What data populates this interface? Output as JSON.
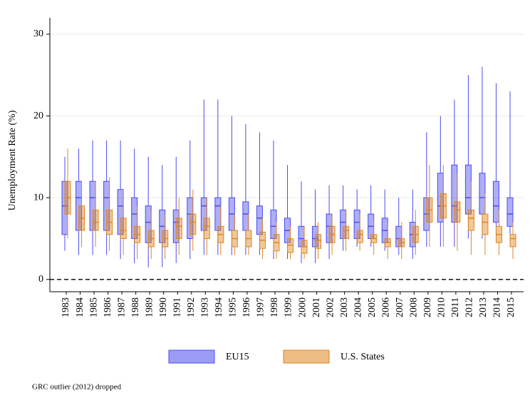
{
  "chart_data": {
    "type": "box",
    "y_label": "Unemployment Rate (%)",
    "note": "GRC outlier (2012) dropped",
    "categories": [
      "1983",
      "1984",
      "1985",
      "1986",
      "1987",
      "1988",
      "1989",
      "1990",
      "1991",
      "1992",
      "1993",
      "1994",
      "1995",
      "1996",
      "1997",
      "1998",
      "1999",
      "2000",
      "2001",
      "2002",
      "2003",
      "2004",
      "2005",
      "2006",
      "2007",
      "2008",
      "2009",
      "2010",
      "2011",
      "2012",
      "2013",
      "2014",
      "2015"
    ],
    "ylim": [
      -1.5,
      32
    ],
    "yticks": [
      0,
      10,
      20,
      30
    ],
    "grid": true,
    "reference_line": 0,
    "series": [
      {
        "name": "EU15",
        "color": "#4b4bf0",
        "whisker_low": [
          3.5,
          3,
          3,
          3,
          2.5,
          2,
          1.5,
          1.5,
          2,
          2.5,
          3,
          3,
          3,
          3,
          3,
          2.5,
          2.5,
          2,
          2,
          2.5,
          3.5,
          4,
          4,
          3.5,
          3,
          2.5,
          4,
          4,
          4,
          5,
          5,
          5,
          5
        ],
        "q1": [
          5.5,
          6,
          6,
          6,
          5.5,
          5,
          4.5,
          4.5,
          4.5,
          5,
          6,
          6,
          6,
          6,
          5.5,
          5,
          4.5,
          4,
          4,
          4.5,
          5,
          5,
          5,
          4.5,
          4,
          4,
          6,
          7,
          7,
          8,
          8,
          7,
          6.5
        ],
        "median": [
          9,
          10,
          10,
          10,
          9,
          8,
          7,
          6.5,
          7,
          8,
          9,
          9,
          8,
          8,
          7.5,
          6.5,
          6,
          5,
          5,
          6.5,
          7,
          7,
          6.5,
          6,
          5,
          5.5,
          8,
          9,
          9,
          10,
          10,
          9,
          8
        ],
        "q3": [
          12,
          12,
          12,
          12,
          11,
          10,
          9,
          8.5,
          8.5,
          10,
          10,
          10,
          10,
          9.5,
          9,
          8.5,
          7.5,
          6.5,
          6.5,
          8,
          8.5,
          8.5,
          8,
          7.5,
          6.5,
          7,
          10,
          13,
          14,
          14,
          13,
          12,
          10
        ],
        "whisker_high": [
          15,
          16,
          17,
          17,
          17,
          16,
          15,
          14,
          15,
          17,
          22,
          22,
          20,
          19,
          18,
          17,
          14,
          12,
          11,
          11.5,
          11.5,
          11,
          11.5,
          11,
          10,
          11,
          18,
          20,
          22,
          25,
          26,
          24,
          23
        ]
      },
      {
        "name": "U.S. States",
        "color": "#e0861f",
        "whisker_low": [
          5,
          4,
          4,
          3.5,
          3,
          2.5,
          2.5,
          2.5,
          3,
          3.5,
          3,
          3,
          3,
          3,
          2.5,
          2.5,
          2.5,
          2.5,
          2.5,
          3,
          3.5,
          3.5,
          3,
          2.5,
          2.5,
          3,
          4,
          4,
          3.5,
          3,
          3,
          3,
          2.5
        ],
        "q1": [
          8,
          6,
          6,
          5.5,
          5,
          4.5,
          4,
          4,
          5,
          5.5,
          5,
          4.5,
          4,
          4,
          3.8,
          3.5,
          3.3,
          3.2,
          3.8,
          4.5,
          5,
          4.5,
          4.5,
          4,
          4,
          4.5,
          7,
          7.5,
          7,
          6,
          5.5,
          4.5,
          4
        ],
        "median": [
          10,
          7.5,
          7,
          7,
          6,
          5.5,
          5,
          5,
          6.5,
          7,
          6.5,
          5.5,
          5,
          5,
          4.8,
          4.5,
          4.2,
          4,
          4.8,
          5.5,
          6,
          5.5,
          5,
          4.5,
          4.5,
          5.5,
          8.5,
          9,
          8.5,
          7.5,
          7,
          5.5,
          5
        ],
        "q3": [
          12,
          9,
          8.5,
          8.5,
          7.5,
          6.5,
          6,
          6,
          7.5,
          8,
          7.5,
          6.5,
          6,
          6,
          5.8,
          5.5,
          5,
          4.8,
          5.5,
          6.5,
          6.5,
          6,
          5.5,
          5,
          5,
          6.5,
          10,
          10.5,
          9.5,
          8.5,
          8,
          6.5,
          5.5
        ],
        "whisker_high": [
          16,
          12,
          12,
          12.5,
          11,
          9,
          8.5,
          8,
          10,
          11,
          10,
          9,
          8,
          8,
          7.5,
          7,
          6.5,
          6.5,
          7,
          8,
          8.5,
          8,
          7.5,
          7,
          7,
          8.5,
          14,
          14,
          13,
          12,
          10.5,
          8.5,
          7
        ]
      }
    ]
  }
}
